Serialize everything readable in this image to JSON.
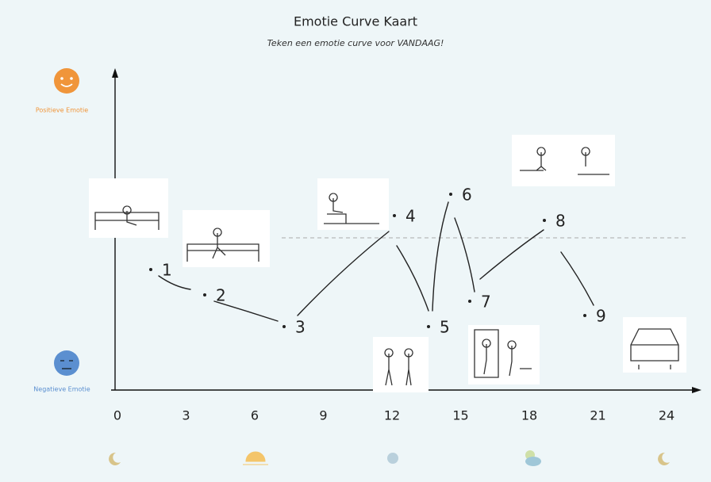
{
  "title": "Emotie Curve Kaart",
  "subtitle": "Teken een emotie curve voor VANDAAG!",
  "y_axis": {
    "top_label": "Positieve Emotie",
    "bottom_label": "Negatieve Emotie"
  },
  "x_axis": {
    "ticks": [
      "0",
      "3",
      "6",
      "9",
      "12",
      "15",
      "18",
      "21",
      "24"
    ]
  },
  "points": [
    "1",
    "2",
    "3",
    "4",
    "5",
    "6",
    "7",
    "8",
    "9"
  ]
}
